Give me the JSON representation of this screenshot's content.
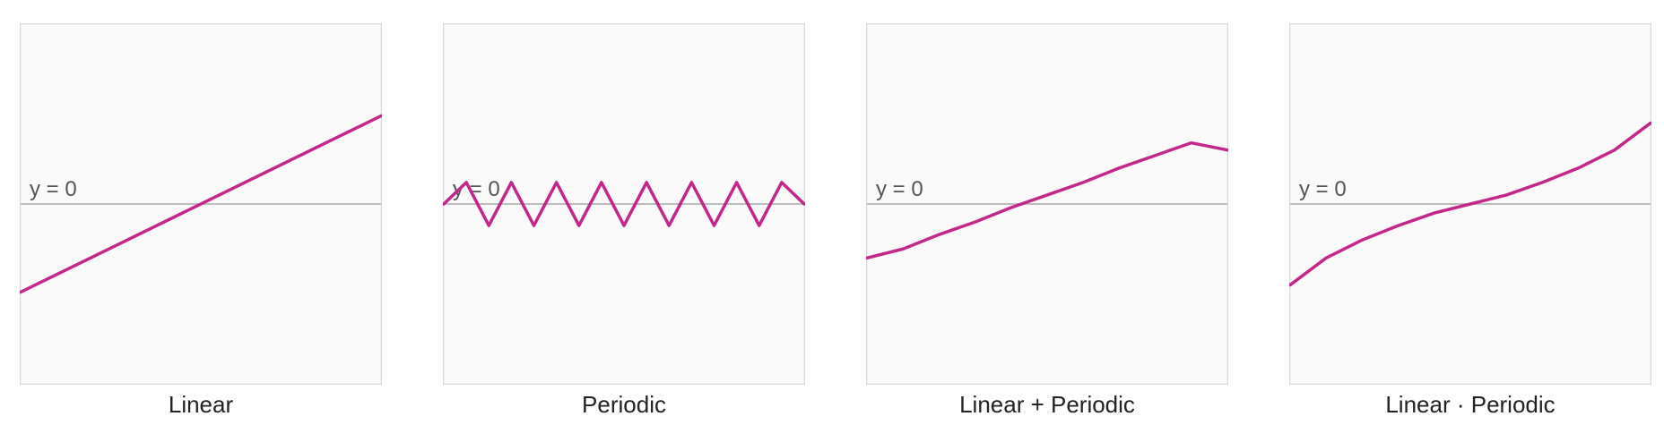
{
  "colors": {
    "line": "#c4278a",
    "zero_line": "#bdbdbd",
    "plot_bg": "#fafafa",
    "plot_border": "#d9d9d9",
    "zero_label": "#555555"
  },
  "chart_data": [
    {
      "type": "line",
      "caption": "Linear",
      "zero_label": "y = 0",
      "xlim": [
        0,
        1
      ],
      "ylim": [
        -1,
        1
      ],
      "series": [
        {
          "x": [
            0,
            1
          ],
          "y": [
            -0.49,
            0.49
          ]
        }
      ]
    },
    {
      "type": "line",
      "caption": "Periodic",
      "zero_label": "y = 0",
      "xlim": [
        0,
        1
      ],
      "ylim": [
        -1,
        1
      ],
      "series": [
        {
          "x": [
            0,
            0.0625,
            0.125,
            0.1875,
            0.25,
            0.3125,
            0.375,
            0.4375,
            0.5,
            0.5625,
            0.625,
            0.6875,
            0.75,
            0.8125,
            0.875,
            0.9375,
            1
          ],
          "y": [
            0,
            0.12,
            -0.12,
            0.12,
            -0.12,
            0.12,
            -0.12,
            0.12,
            -0.12,
            0.12,
            -0.12,
            0.12,
            -0.12,
            0.12,
            -0.12,
            0.12,
            0
          ]
        }
      ]
    },
    {
      "type": "line",
      "caption": "Linear + Periodic",
      "zero_label": "y = 0",
      "xlim": [
        0,
        1
      ],
      "ylim": [
        -1,
        1
      ],
      "series": [
        {
          "x": [
            0,
            0.1,
            0.2,
            0.3,
            0.4,
            0.5,
            0.6,
            0.7,
            0.8,
            0.9,
            1
          ],
          "y": [
            -0.3,
            -0.25,
            -0.17,
            -0.1,
            -0.02,
            0.05,
            0.12,
            0.2,
            0.27,
            0.34,
            0.3
          ]
        }
      ]
    },
    {
      "type": "line",
      "caption": "Linear · Periodic",
      "zero_label": "y = 0",
      "xlim": [
        0,
        1
      ],
      "ylim": [
        -1,
        1
      ],
      "series": [
        {
          "x": [
            0,
            0.1,
            0.2,
            0.3,
            0.4,
            0.5,
            0.6,
            0.7,
            0.8,
            0.9,
            1
          ],
          "y": [
            -0.45,
            -0.3,
            -0.2,
            -0.12,
            -0.05,
            0,
            0.05,
            0.12,
            0.2,
            0.3,
            0.45
          ]
        }
      ]
    }
  ]
}
